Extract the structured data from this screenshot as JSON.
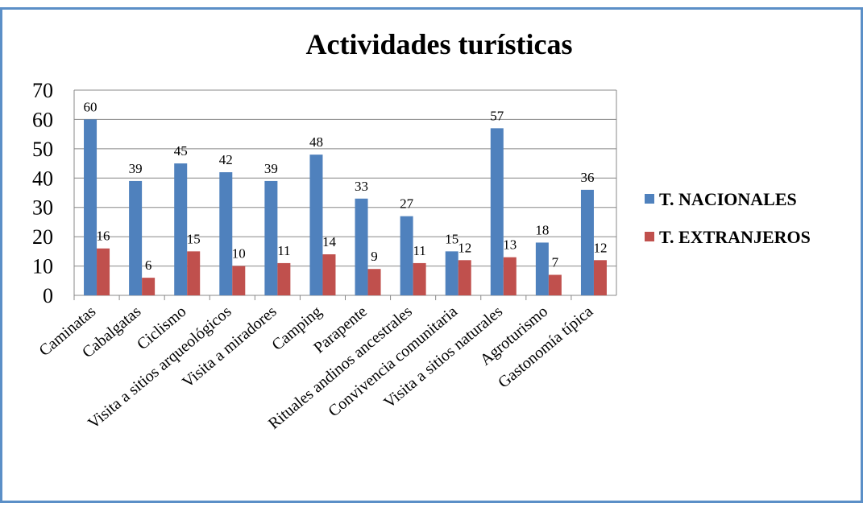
{
  "chart_data": {
    "type": "bar",
    "title": "Actividades turísticas",
    "categories": [
      "Caminatas",
      "Cabalgatas",
      "Ciclismo",
      "Visita a sitios arqueológicos",
      "Visita a miradores",
      "Camping",
      "Parapente",
      "Rituales andinos ancestrales",
      "Convivencia comunitaria",
      "Visita a sitios naturales",
      "Agroturismo",
      "Gastonomía típica"
    ],
    "series": [
      {
        "name": "T. NACIONALES",
        "color": "#4f81bd",
        "values": [
          60,
          39,
          45,
          42,
          39,
          48,
          33,
          27,
          15,
          57,
          18,
          36
        ]
      },
      {
        "name": "T. EXTRANJEROS",
        "color": "#c0504d",
        "values": [
          16,
          6,
          15,
          10,
          11,
          14,
          9,
          11,
          12,
          13,
          7,
          12
        ]
      }
    ],
    "ylim": [
      0,
      70
    ],
    "yticks": [
      0,
      10,
      20,
      30,
      40,
      50,
      60,
      70
    ],
    "grid": true,
    "legend": "right"
  }
}
